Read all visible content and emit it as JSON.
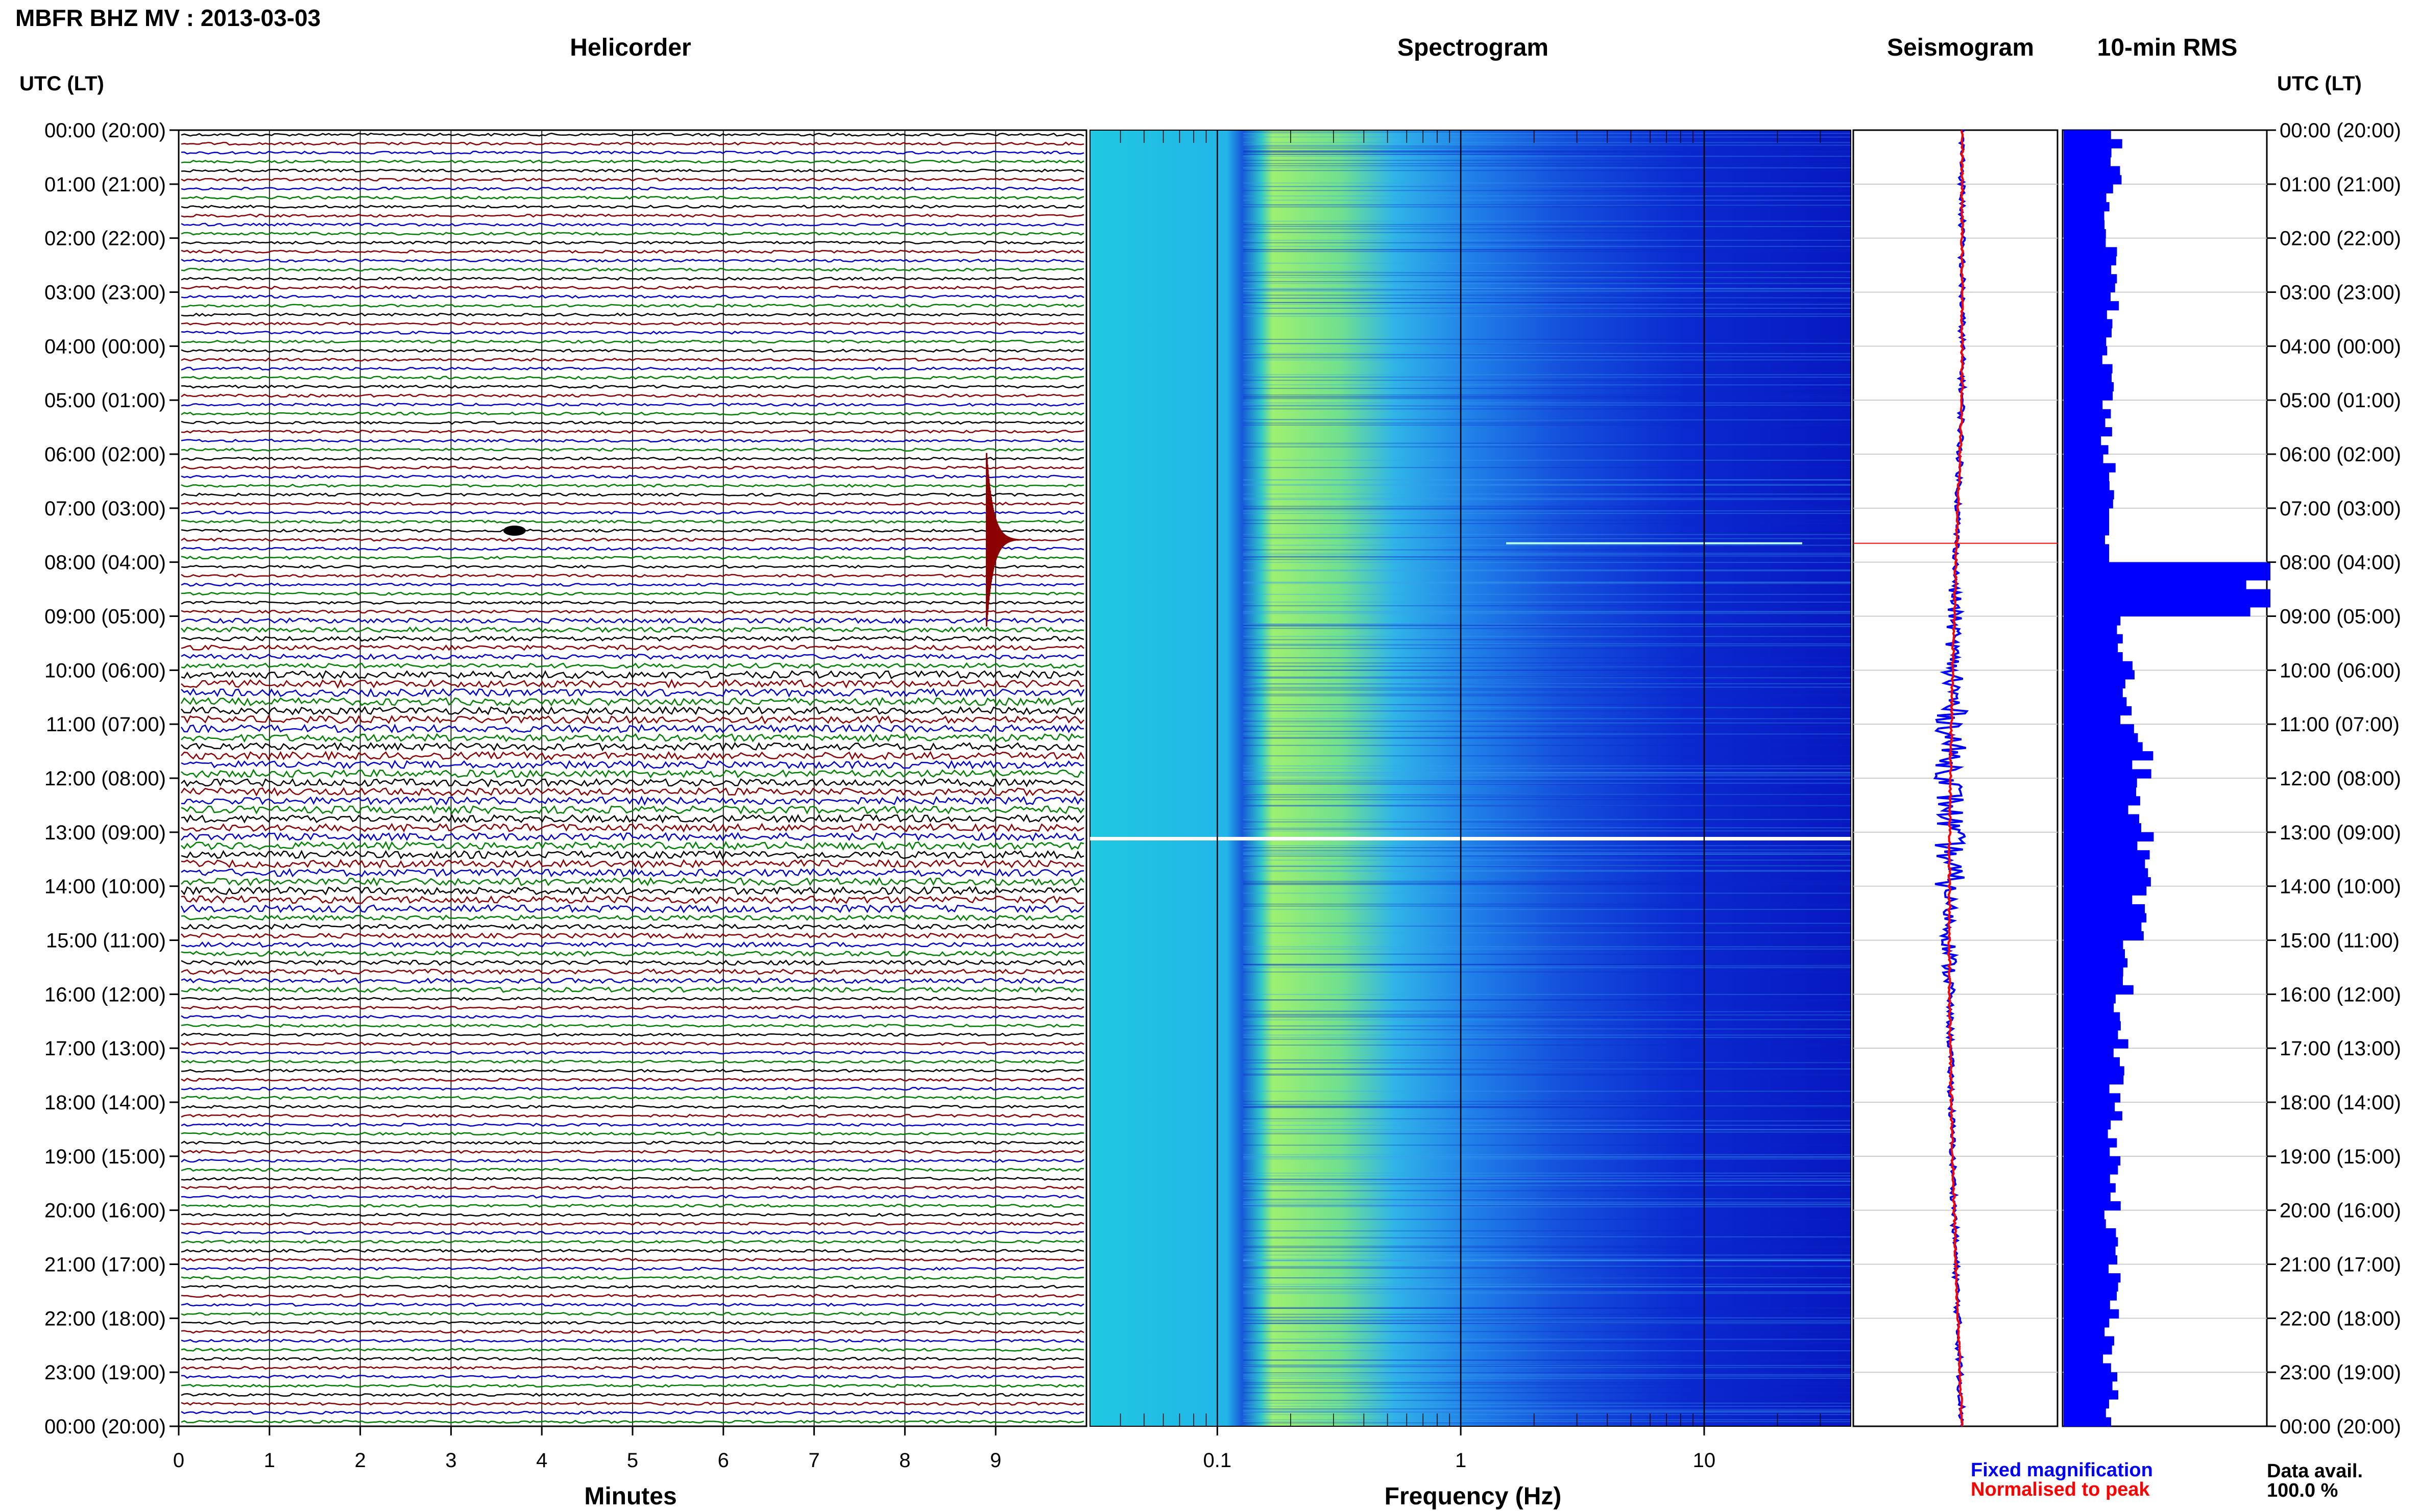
{
  "title": "MBFR BHZ MV : 2013-03-03",
  "panels": {
    "helicorder": "Helicorder",
    "spectrogram": "Spectrogram",
    "seismogram": "Seismogram",
    "rms": "10-min RMS"
  },
  "axis": {
    "utc_label_left": "UTC (LT)",
    "utc_label_right": "UTC (LT)",
    "minutes_label": "Minutes",
    "frequency_label": "Frequency (Hz)"
  },
  "legend": {
    "fixed": "Fixed magnification",
    "normalised": "Normalised to peak",
    "fixed_color": "#0000ff",
    "normalised_color": "#ff0000"
  },
  "data_avail": {
    "label": "Data avail.",
    "value": "100.0 %"
  },
  "colors": {
    "trace_cycle": [
      "#000000",
      "#8b0000",
      "#0000cd",
      "#008000"
    ],
    "rms_bar": "#0000ff",
    "spectrogram_low": "#00008b",
    "spectrogram_mid": "#00bfff",
    "spectrogram_high": "#adff2f"
  },
  "chart_data": [
    {
      "type": "line",
      "title": "Helicorder",
      "xlabel": "Minutes",
      "ylabel": "UTC (LT)",
      "x_ticks": [
        "0",
        "1",
        "2",
        "3",
        "4",
        "5",
        "6",
        "7",
        "8",
        "9"
      ],
      "xlim": [
        0,
        10
      ],
      "y_ticks": [
        "00:00 (20:00)",
        "01:00 (21:00)",
        "02:00 (22:00)",
        "03:00 (23:00)",
        "04:00 (00:00)",
        "05:00 (01:00)",
        "06:00 (02:00)",
        "07:00 (03:00)",
        "08:00 (04:00)",
        "09:00 (05:00)",
        "10:00 (06:00)",
        "11:00 (07:00)",
        "12:00 (08:00)",
        "13:00 (09:00)",
        "14:00 (10:00)",
        "15:00 (11:00)",
        "16:00 (12:00)",
        "17:00 (13:00)",
        "18:00 (14:00)",
        "19:00 (15:00)",
        "20:00 (16:00)",
        "21:00 (17:00)",
        "22:00 (18:00)",
        "23:00 (19:00)",
        "00:00 (20:00)"
      ],
      "traces_per_hour": 6,
      "events": [
        {
          "utc": "07:30",
          "minute": 8.9,
          "label": "large event"
        },
        {
          "utc": "07:20",
          "minute": 3.7,
          "label": "small event"
        }
      ],
      "grid": true
    },
    {
      "type": "heatmap",
      "title": "Spectrogram",
      "xlabel": "Frequency (Hz)",
      "x_scale": "log",
      "x_ticks": [
        "0.1",
        "1",
        "10"
      ],
      "xlim": [
        0.03,
        40
      ],
      "ylim_utc": [
        "00:00",
        "24:00"
      ]
    },
    {
      "type": "line",
      "title": "Seismogram",
      "series": [
        {
          "name": "Fixed magnification"
        },
        {
          "name": "Normalised to peak"
        }
      ]
    },
    {
      "type": "bar",
      "title": "10-min RMS",
      "hours": [
        0,
        1,
        2,
        3,
        4,
        5,
        6,
        7,
        8,
        9,
        10,
        11,
        12,
        13,
        14,
        15,
        16,
        17,
        18,
        19,
        20,
        21,
        22,
        23
      ],
      "values_relative": [
        0.25,
        0.22,
        0.23,
        0.24,
        0.22,
        0.21,
        0.22,
        0.2,
        1.0,
        0.3,
        0.32,
        0.38,
        0.33,
        0.38,
        0.35,
        0.3,
        0.28,
        0.26,
        0.25,
        0.24,
        0.23,
        0.24,
        0.22,
        0.24
      ]
    }
  ]
}
